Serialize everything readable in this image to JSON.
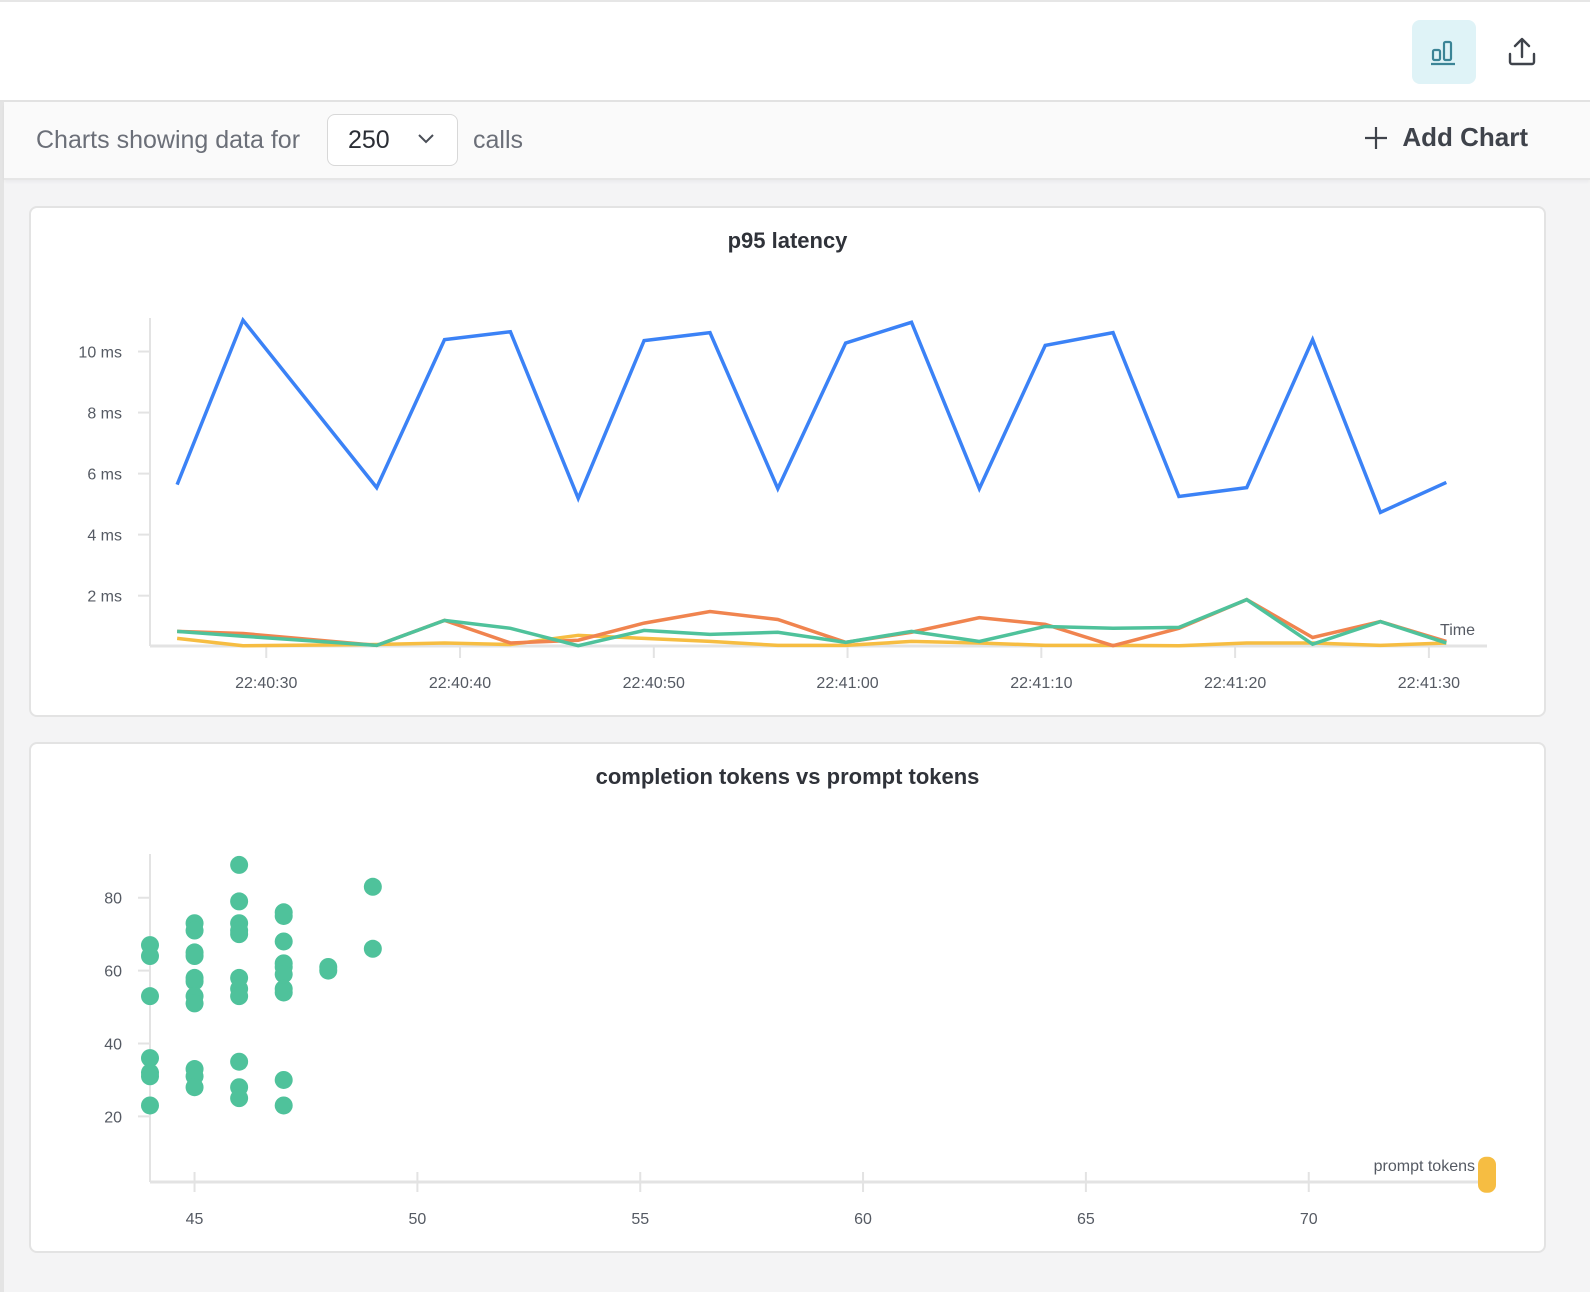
{
  "header": {
    "icons": [
      "bar-chart-icon",
      "share-upload-icon"
    ]
  },
  "toolbar": {
    "prefix": "Charts showing data for",
    "selected_count": "250",
    "suffix": "calls",
    "add_chart_label": "Add Chart"
  },
  "chart_data": [
    {
      "type": "line",
      "title": "p95 latency",
      "xlabel": "Time",
      "ylabel": "",
      "xticks": [
        "22:40:30",
        "22:40:40",
        "22:40:50",
        "22:41:00",
        "22:41:10",
        "22:41:20",
        "22:41:30"
      ],
      "yticks": [
        "2 ms",
        "4 ms",
        "6 ms",
        "8 ms",
        "10 ms"
      ],
      "ylim": [
        0.35,
        11.1
      ],
      "xlim": [
        "22:40:24",
        "22:41:33"
      ],
      "grid": false,
      "x": [
        "22:40:25.4",
        "22:40:28.8",
        "22:40:35.7",
        "22:40:39.2",
        "22:40:42.6",
        "22:40:46.1",
        "22:40:49.5",
        "22:40:52.9",
        "22:40:56.4",
        "22:40:59.9",
        "22:41:03.3",
        "22:41:06.8",
        "22:41:10.2",
        "22:41:13.7",
        "22:41:17.1",
        "22:41:20.6",
        "22:41:24.0",
        "22:41:27.5",
        "22:41:30.9"
      ],
      "series": [
        {
          "color": "#3b82f6",
          "values": [
            5.64,
            11.03,
            5.54,
            10.39,
            10.65,
            5.19,
            10.36,
            10.62,
            5.51,
            10.28,
            10.96,
            5.51,
            10.2,
            10.62,
            5.25,
            5.54,
            10.39,
            4.73,
            5.71
          ]
        },
        {
          "color": "#f0844f",
          "values": [
            0.83,
            0.76,
            0.37,
            1.19,
            0.45,
            0.54,
            1.1,
            1.48,
            1.22,
            0.47,
            0.8,
            1.28,
            1.06,
            0.36,
            0.93,
            1.87,
            0.63,
            1.15,
            0.5
          ]
        },
        {
          "color": "#4fc29b",
          "values": [
            0.83,
            0.67,
            0.37,
            1.19,
            0.93,
            0.36,
            0.86,
            0.73,
            0.8,
            0.47,
            0.83,
            0.5,
            0.99,
            0.93,
            0.96,
            1.87,
            0.41,
            1.15,
            0.45
          ]
        },
        {
          "color": "#f6bd42",
          "values": [
            0.6,
            0.36,
            0.4,
            0.45,
            0.4,
            0.7,
            0.6,
            0.5,
            0.37,
            0.37,
            0.5,
            0.45,
            0.37,
            0.37,
            0.36,
            0.45,
            0.45,
            0.37,
            0.45
          ]
        }
      ]
    },
    {
      "type": "scatter",
      "title": "completion tokens vs prompt tokens",
      "xlabel": "prompt tokens",
      "ylabel": "",
      "xticks": [
        45,
        50,
        55,
        60,
        65,
        70
      ],
      "yticks": [
        20,
        40,
        60,
        80
      ],
      "xlim": [
        44,
        74
      ],
      "ylim": [
        2,
        92
      ],
      "grid": false,
      "series": [
        {
          "color": "#4fc29b",
          "points": [
            [
              44,
              67
            ],
            [
              44,
              64
            ],
            [
              44,
              53
            ],
            [
              44,
              36
            ],
            [
              44,
              32
            ],
            [
              44,
              31
            ],
            [
              44,
              23
            ],
            [
              45,
              73
            ],
            [
              45,
              71
            ],
            [
              45,
              65
            ],
            [
              45,
              64
            ],
            [
              45,
              58
            ],
            [
              45,
              57
            ],
            [
              45,
              53
            ],
            [
              45,
              51
            ],
            [
              45,
              33
            ],
            [
              45,
              31
            ],
            [
              45,
              28
            ],
            [
              46,
              89
            ],
            [
              46,
              79
            ],
            [
              46,
              73
            ],
            [
              46,
              71
            ],
            [
              46,
              70
            ],
            [
              46,
              58
            ],
            [
              46,
              55
            ],
            [
              46,
              53
            ],
            [
              46,
              35
            ],
            [
              46,
              28
            ],
            [
              46,
              25
            ],
            [
              47,
              76
            ],
            [
              47,
              75
            ],
            [
              47,
              68
            ],
            [
              47,
              62
            ],
            [
              47,
              61
            ],
            [
              47,
              59
            ],
            [
              47,
              55
            ],
            [
              47,
              54
            ],
            [
              47,
              30
            ],
            [
              47,
              23
            ],
            [
              48,
              61
            ],
            [
              48,
              60
            ],
            [
              49,
              83
            ],
            [
              49,
              66
            ]
          ]
        },
        {
          "color": "#f6bd42",
          "points": [
            [
              74,
              4
            ]
          ]
        }
      ]
    }
  ]
}
